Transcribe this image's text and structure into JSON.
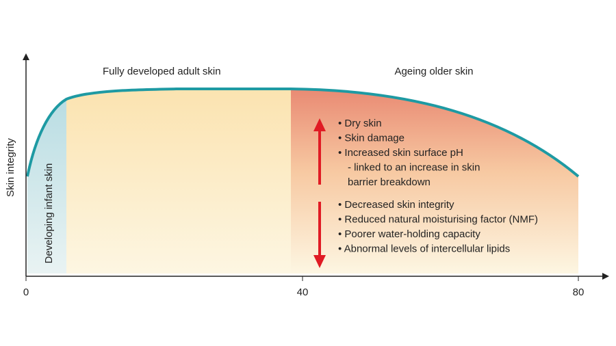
{
  "axes": {
    "y_label": "Skin integrity",
    "x_ticks": [
      "0",
      "40",
      "80"
    ]
  },
  "regions": {
    "infant": "Developing infant skin",
    "adult": "Fully developed adult skin",
    "ageing": "Ageing older skin"
  },
  "upper_list": [
    "• Dry skin",
    "• Skin damage",
    "• Increased skin surface pH",
    "- linked to an increase in skin",
    "barrier breakdown"
  ],
  "lower_list": [
    "• Decreased skin integrity",
    "• Reduced natural moisturising factor (NMF)",
    "• Poorer water-holding capacity",
    "• Abnormal levels of intercellular lipids"
  ]
}
